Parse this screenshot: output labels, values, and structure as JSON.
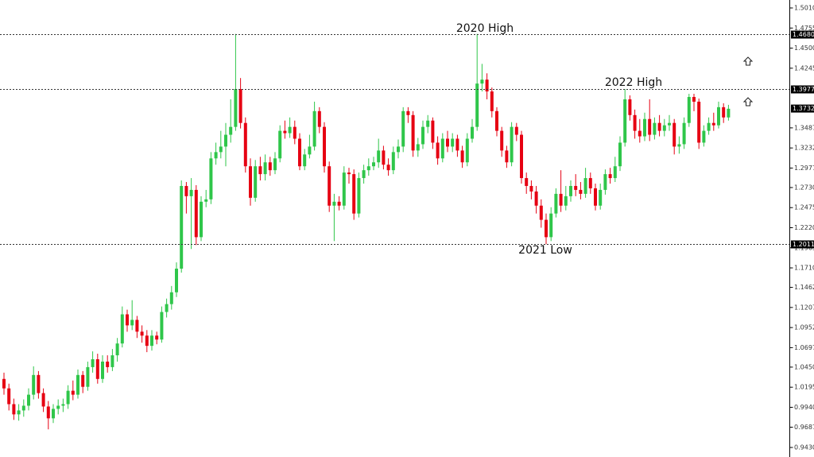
{
  "chart_data": {
    "type": "candlestick",
    "up_color": "#2fc64a",
    "down_color": "#e60012",
    "ylim": [
      0.943,
      1.501
    ],
    "yticks": [
      {
        "value": 1.501,
        "label": "1.50100"
      },
      {
        "value": 1.4755,
        "label": "1.47550"
      },
      {
        "value": 1.45,
        "label": "1.45000"
      },
      {
        "value": 1.4245,
        "label": "1.42450"
      },
      {
        "value": 1.34875,
        "label": "1.34875"
      },
      {
        "value": 1.32325,
        "label": "1.32325"
      },
      {
        "value": 1.29775,
        "label": "1.29775"
      },
      {
        "value": 1.273,
        "label": "1.27300"
      },
      {
        "value": 1.2475,
        "label": "1.24750"
      },
      {
        "value": 1.222,
        "label": "1.22200"
      },
      {
        "value": 1.1965,
        "label": "1.19650"
      },
      {
        "value": 1.171,
        "label": "1.17100"
      },
      {
        "value": 1.14625,
        "label": "1.14625"
      },
      {
        "value": 1.12075,
        "label": "1.12075"
      },
      {
        "value": 1.09525,
        "label": "1.09525"
      },
      {
        "value": 1.06975,
        "label": "1.06975"
      },
      {
        "value": 1.045,
        "label": "1.04500"
      },
      {
        "value": 1.0195,
        "label": "1.01950"
      },
      {
        "value": 0.994,
        "label": "0.99400"
      },
      {
        "value": 0.96875,
        "label": "0.96875"
      },
      {
        "value": 0.943,
        "label": "0.94300"
      }
    ],
    "levels": [
      {
        "value": 1.46805,
        "label": "1.46805"
      },
      {
        "value": 1.39773,
        "label": "1.39773"
      },
      {
        "value": 1.20115,
        "label": "1.20115"
      }
    ],
    "price": {
      "value": 1.37326,
      "label": "1.37326"
    },
    "annotations": [
      "2020 High",
      "2022 High",
      "2021 Low"
    ],
    "open": [
      1.03,
      1.018,
      0.998,
      0.985,
      0.99,
      0.996,
      1.01,
      1.035,
      1.012,
      0.995,
      0.98,
      0.992,
      0.996,
      0.998,
      1.015,
      1.01,
      1.035,
      1.02,
      1.045,
      1.055,
      1.03,
      1.052,
      1.045,
      1.06,
      1.075,
      1.112,
      1.098,
      1.105,
      1.09,
      1.085,
      1.072,
      1.085,
      1.08,
      1.115,
      1.125,
      1.14,
      1.17,
      1.275,
      1.262,
      1.27,
      1.21,
      1.255,
      1.258,
      1.31,
      1.318,
      1.325,
      1.34,
      1.35,
      1.398,
      1.355,
      1.3,
      1.26,
      1.3,
      1.29,
      1.305,
      1.295,
      1.31,
      1.345,
      1.342,
      1.35,
      1.335,
      1.3,
      1.315,
      1.325,
      1.37,
      1.35,
      1.3,
      1.25,
      1.255,
      1.25,
      1.292,
      1.29,
      1.24,
      1.285,
      1.295,
      1.3,
      1.305,
      1.32,
      1.302,
      1.295,
      1.318,
      1.325,
      1.37,
      1.365,
      1.32,
      1.328,
      1.35,
      1.358,
      1.33,
      1.31,
      1.335,
      1.325,
      1.335,
      1.32,
      1.305,
      1.335,
      1.35,
      1.405,
      1.41,
      1.395,
      1.37,
      1.345,
      1.32,
      1.305,
      1.35,
      1.34,
      1.285,
      1.275,
      1.268,
      1.25,
      1.232,
      1.21,
      1.24,
      1.265,
      1.25,
      1.262,
      1.275,
      1.27,
      1.265,
      1.285,
      1.272,
      1.25,
      1.27,
      1.29,
      1.285,
      1.3,
      1.33,
      1.385,
      1.365,
      1.345,
      1.338,
      1.36,
      1.34,
      1.355,
      1.345,
      1.352,
      1.355,
      1.325,
      1.328,
      1.355,
      1.388,
      1.382,
      1.33,
      1.345,
      1.355,
      1.352,
      1.375,
      1.362
    ],
    "high": [
      1.038,
      1.024,
      1.005,
      0.998,
      1.004,
      1.018,
      1.046,
      1.04,
      1.018,
      1.002,
      0.998,
      1.004,
      1.005,
      1.022,
      1.028,
      1.042,
      1.04,
      1.052,
      1.065,
      1.062,
      1.06,
      1.06,
      1.068,
      1.082,
      1.122,
      1.118,
      1.13,
      1.11,
      1.098,
      1.092,
      1.092,
      1.09,
      1.122,
      1.132,
      1.148,
      1.178,
      1.282,
      1.28,
      1.285,
      1.276,
      1.262,
      1.27,
      1.318,
      1.33,
      1.345,
      1.355,
      1.385,
      1.468,
      1.412,
      1.362,
      1.31,
      1.308,
      1.312,
      1.315,
      1.312,
      1.318,
      1.352,
      1.358,
      1.362,
      1.358,
      1.342,
      1.322,
      1.34,
      1.382,
      1.375,
      1.356,
      1.306,
      1.265,
      1.262,
      1.3,
      1.298,
      1.296,
      1.292,
      1.302,
      1.31,
      1.312,
      1.335,
      1.326,
      1.31,
      1.325,
      1.334,
      1.375,
      1.375,
      1.37,
      1.336,
      1.358,
      1.365,
      1.362,
      1.338,
      1.342,
      1.345,
      1.342,
      1.34,
      1.326,
      1.342,
      1.36,
      1.468,
      1.43,
      1.418,
      1.4,
      1.375,
      1.35,
      1.326,
      1.356,
      1.355,
      1.345,
      1.292,
      1.282,
      1.275,
      1.258,
      1.24,
      1.248,
      1.272,
      1.295,
      1.275,
      1.282,
      1.29,
      1.28,
      1.298,
      1.292,
      1.278,
      1.278,
      1.296,
      1.298,
      1.312,
      1.338,
      1.398,
      1.39,
      1.372,
      1.36,
      1.368,
      1.385,
      1.362,
      1.365,
      1.36,
      1.365,
      1.36,
      1.338,
      1.362,
      1.392,
      1.392,
      1.386,
      1.352,
      1.362,
      1.368,
      1.382,
      1.38,
      1.378
    ],
    "low": [
      1.01,
      0.99,
      0.978,
      0.977,
      0.982,
      0.99,
      1.004,
      1.005,
      0.988,
      0.966,
      0.974,
      0.985,
      0.988,
      0.992,
      1.003,
      1.005,
      1.012,
      1.015,
      1.038,
      1.024,
      1.025,
      1.038,
      1.04,
      1.052,
      1.07,
      1.09,
      1.092,
      1.082,
      1.076,
      1.064,
      1.066,
      1.074,
      1.076,
      1.108,
      1.118,
      1.134,
      1.165,
      1.24,
      1.195,
      1.2,
      1.205,
      1.248,
      1.252,
      1.302,
      1.31,
      1.3,
      1.33,
      1.345,
      1.348,
      1.292,
      1.25,
      1.255,
      1.282,
      1.282,
      1.288,
      1.29,
      1.305,
      1.335,
      1.336,
      1.328,
      1.295,
      1.295,
      1.31,
      1.32,
      1.342,
      1.292,
      1.242,
      1.205,
      1.244,
      1.245,
      1.278,
      1.232,
      1.235,
      1.278,
      1.288,
      1.295,
      1.298,
      1.296,
      1.288,
      1.29,
      1.31,
      1.318,
      1.355,
      1.312,
      1.312,
      1.322,
      1.342,
      1.322,
      1.302,
      1.305,
      1.318,
      1.318,
      1.312,
      1.298,
      1.3,
      1.33,
      1.345,
      1.395,
      1.385,
      1.362,
      1.338,
      1.312,
      1.298,
      1.3,
      1.332,
      1.278,
      1.265,
      1.258,
      1.24,
      1.222,
      1.201,
      1.205,
      1.235,
      1.242,
      1.244,
      1.255,
      1.262,
      1.258,
      1.26,
      1.265,
      1.244,
      1.245,
      1.264,
      1.278,
      1.28,
      1.294,
      1.325,
      1.358,
      1.335,
      1.33,
      1.332,
      1.332,
      1.334,
      1.338,
      1.338,
      1.345,
      1.315,
      1.316,
      1.322,
      1.35,
      1.37,
      1.322,
      1.325,
      1.34,
      1.345,
      1.348,
      1.355,
      1.358
    ],
    "close": [
      1.018,
      0.998,
      0.985,
      0.99,
      0.996,
      1.01,
      1.035,
      1.012,
      0.995,
      0.98,
      0.992,
      0.996,
      0.998,
      1.015,
      1.01,
      1.035,
      1.02,
      1.045,
      1.055,
      1.03,
      1.052,
      1.045,
      1.06,
      1.075,
      1.112,
      1.098,
      1.105,
      1.09,
      1.085,
      1.072,
      1.085,
      1.08,
      1.115,
      1.125,
      1.14,
      1.17,
      1.275,
      1.262,
      1.27,
      1.21,
      1.255,
      1.258,
      1.31,
      1.318,
      1.325,
      1.34,
      1.35,
      1.398,
      1.355,
      1.3,
      1.26,
      1.3,
      1.29,
      1.305,
      1.295,
      1.31,
      1.345,
      1.342,
      1.35,
      1.335,
      1.3,
      1.315,
      1.325,
      1.37,
      1.35,
      1.3,
      1.25,
      1.255,
      1.25,
      1.292,
      1.29,
      1.24,
      1.285,
      1.295,
      1.3,
      1.305,
      1.32,
      1.302,
      1.295,
      1.318,
      1.325,
      1.37,
      1.365,
      1.32,
      1.328,
      1.35,
      1.358,
      1.33,
      1.31,
      1.335,
      1.325,
      1.335,
      1.32,
      1.305,
      1.335,
      1.35,
      1.405,
      1.41,
      1.395,
      1.37,
      1.345,
      1.32,
      1.305,
      1.35,
      1.34,
      1.285,
      1.275,
      1.268,
      1.25,
      1.232,
      1.21,
      1.24,
      1.265,
      1.25,
      1.262,
      1.275,
      1.27,
      1.265,
      1.285,
      1.272,
      1.25,
      1.27,
      1.29,
      1.285,
      1.3,
      1.33,
      1.385,
      1.365,
      1.345,
      1.338,
      1.36,
      1.34,
      1.355,
      1.345,
      1.352,
      1.355,
      1.325,
      1.328,
      1.355,
      1.388,
      1.382,
      1.33,
      1.345,
      1.355,
      1.352,
      1.375,
      1.362,
      1.373
    ]
  }
}
